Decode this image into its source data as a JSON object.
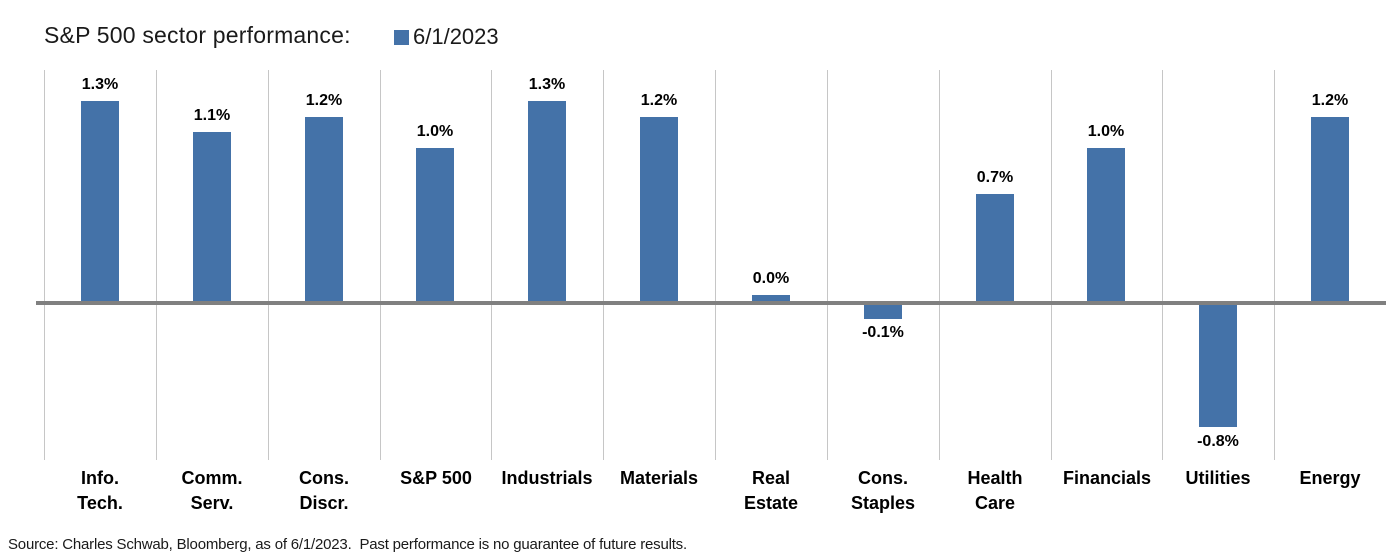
{
  "header": {
    "title": "S&P 500 sector performance:",
    "legend_label": "6/1/2023"
  },
  "colors": {
    "bar": "#4472A8",
    "zero_line": "#808080",
    "gridline": "#c6c6c6",
    "text": "#000000"
  },
  "chart_data": {
    "type": "bar",
    "title": "S&P 500 sector performance:",
    "legend_entries": [
      "6/1/2023"
    ],
    "legend_position": "top",
    "categories": [
      "Info. Tech.",
      "Comm. Serv.",
      "Cons. Discr.",
      "S&P 500",
      "Industrials",
      "Materials",
      "Real Estate",
      "Cons. Staples",
      "Health Care",
      "Financials",
      "Utilities",
      "Energy"
    ],
    "category_label_lines": [
      [
        "Info.",
        "Tech."
      ],
      [
        "Comm.",
        "Serv."
      ],
      [
        "Cons.",
        "Discr."
      ],
      [
        "S&P 500"
      ],
      [
        "Industrials"
      ],
      [
        "Materials"
      ],
      [
        "Real",
        "Estate"
      ],
      [
        "Cons.",
        "Staples"
      ],
      [
        "Health",
        "Care"
      ],
      [
        "Financials"
      ],
      [
        "Utilities"
      ],
      [
        "Energy"
      ]
    ],
    "series": [
      {
        "name": "6/1/2023",
        "values": [
          1.3,
          1.1,
          1.2,
          1.0,
          1.3,
          1.2,
          0.0,
          -0.1,
          0.7,
          1.0,
          -0.8,
          1.2
        ],
        "data_labels": [
          "1.3%",
          "1.1%",
          "1.2%",
          "1.0%",
          "1.3%",
          "1.2%",
          "0.0%",
          "-0.1%",
          "0.7%",
          "1.0%",
          "-0.8%",
          "1.2%"
        ]
      }
    ],
    "xlabel": "",
    "ylabel": "",
    "ylim": [
      -1.0,
      1.5
    ],
    "y_axis_visible": false,
    "grid": "vertical-category-boundaries"
  },
  "footer": {
    "source": "Source: Charles Schwab, Bloomberg, as of 6/1/2023.  Past performance is no guarantee of future results."
  }
}
